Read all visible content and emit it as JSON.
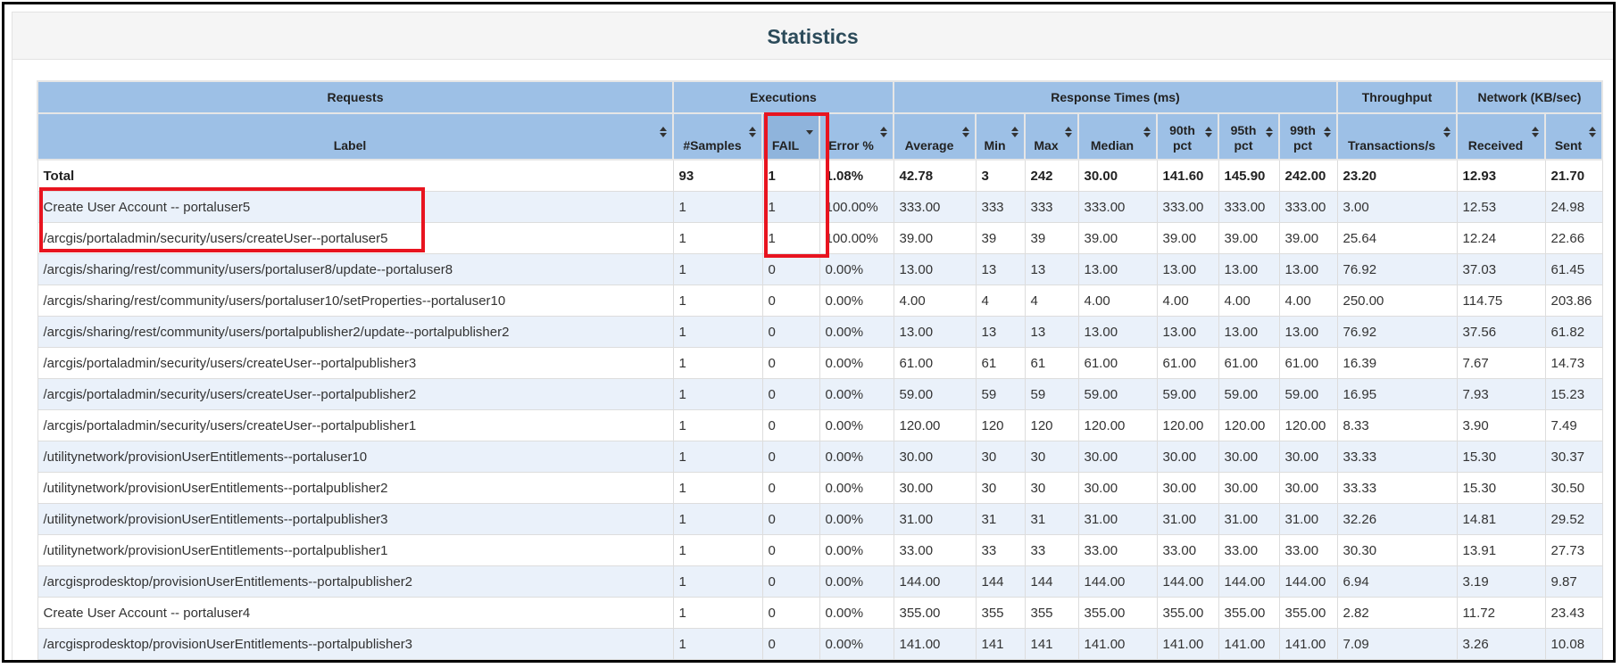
{
  "panel": {
    "title": "Statistics"
  },
  "table": {
    "groups": [
      {
        "label": "Requests",
        "colspan": 1
      },
      {
        "label": "Executions",
        "colspan": 3
      },
      {
        "label": "Response Times (ms)",
        "colspan": 7
      },
      {
        "label": "Throughput",
        "colspan": 1
      },
      {
        "label": "Network (KB/sec)",
        "colspan": 2
      }
    ],
    "columns": [
      {
        "key": "label",
        "line1": "Label",
        "line2": "",
        "sort": "both"
      },
      {
        "key": "samples",
        "line1": "#Samples",
        "line2": "",
        "sort": "both"
      },
      {
        "key": "fail",
        "line1": "FAIL",
        "line2": "",
        "sort": "desc"
      },
      {
        "key": "error_pct",
        "line1": "Error %",
        "line2": "",
        "sort": "both"
      },
      {
        "key": "average",
        "line1": "Average",
        "line2": "",
        "sort": "both"
      },
      {
        "key": "min",
        "line1": "Min",
        "line2": "",
        "sort": "both"
      },
      {
        "key": "max",
        "line1": "Max",
        "line2": "",
        "sort": "both"
      },
      {
        "key": "median",
        "line1": "Median",
        "line2": "",
        "sort": "both"
      },
      {
        "key": "p90",
        "line1": "90th",
        "line2": "pct",
        "sort": "both"
      },
      {
        "key": "p95",
        "line1": "95th",
        "line2": "pct",
        "sort": "both"
      },
      {
        "key": "p99",
        "line1": "99th",
        "line2": "pct",
        "sort": "both"
      },
      {
        "key": "tps",
        "line1": "Transactions/s",
        "line2": "",
        "sort": "both"
      },
      {
        "key": "received",
        "line1": "Received",
        "line2": "",
        "sort": "both"
      },
      {
        "key": "sent",
        "line1": "Sent",
        "line2": "",
        "sort": "both"
      }
    ],
    "total": [
      "Total",
      "93",
      "1",
      "1.08%",
      "42.78",
      "3",
      "242",
      "30.00",
      "141.60",
      "145.90",
      "242.00",
      "23.20",
      "12.93",
      "21.70"
    ],
    "rows": [
      [
        "Create User Account -- portaluser5",
        "1",
        "1",
        "100.00%",
        "333.00",
        "333",
        "333",
        "333.00",
        "333.00",
        "333.00",
        "333.00",
        "3.00",
        "12.53",
        "24.98"
      ],
      [
        "/arcgis/portaladmin/security/users/createUser--portaluser5",
        "1",
        "1",
        "100.00%",
        "39.00",
        "39",
        "39",
        "39.00",
        "39.00",
        "39.00",
        "39.00",
        "25.64",
        "12.24",
        "22.66"
      ],
      [
        "/arcgis/sharing/rest/community/users/portaluser8/update--portaluser8",
        "1",
        "0",
        "0.00%",
        "13.00",
        "13",
        "13",
        "13.00",
        "13.00",
        "13.00",
        "13.00",
        "76.92",
        "37.03",
        "61.45"
      ],
      [
        "/arcgis/sharing/rest/community/users/portaluser10/setProperties--portaluser10",
        "1",
        "0",
        "0.00%",
        "4.00",
        "4",
        "4",
        "4.00",
        "4.00",
        "4.00",
        "4.00",
        "250.00",
        "114.75",
        "203.86"
      ],
      [
        "/arcgis/sharing/rest/community/users/portalpublisher2/update--portalpublisher2",
        "1",
        "0",
        "0.00%",
        "13.00",
        "13",
        "13",
        "13.00",
        "13.00",
        "13.00",
        "13.00",
        "76.92",
        "37.56",
        "61.82"
      ],
      [
        "/arcgis/portaladmin/security/users/createUser--portalpublisher3",
        "1",
        "0",
        "0.00%",
        "61.00",
        "61",
        "61",
        "61.00",
        "61.00",
        "61.00",
        "61.00",
        "16.39",
        "7.67",
        "14.73"
      ],
      [
        "/arcgis/portaladmin/security/users/createUser--portalpublisher2",
        "1",
        "0",
        "0.00%",
        "59.00",
        "59",
        "59",
        "59.00",
        "59.00",
        "59.00",
        "59.00",
        "16.95",
        "7.93",
        "15.23"
      ],
      [
        "/arcgis/portaladmin/security/users/createUser--portalpublisher1",
        "1",
        "0",
        "0.00%",
        "120.00",
        "120",
        "120",
        "120.00",
        "120.00",
        "120.00",
        "120.00",
        "8.33",
        "3.90",
        "7.49"
      ],
      [
        "/utilitynetwork/provisionUserEntitlements--portaluser10",
        "1",
        "0",
        "0.00%",
        "30.00",
        "30",
        "30",
        "30.00",
        "30.00",
        "30.00",
        "30.00",
        "33.33",
        "15.30",
        "30.37"
      ],
      [
        "/utilitynetwork/provisionUserEntitlements--portalpublisher2",
        "1",
        "0",
        "0.00%",
        "30.00",
        "30",
        "30",
        "30.00",
        "30.00",
        "30.00",
        "30.00",
        "33.33",
        "15.30",
        "30.50"
      ],
      [
        "/utilitynetwork/provisionUserEntitlements--portalpublisher3",
        "1",
        "0",
        "0.00%",
        "31.00",
        "31",
        "31",
        "31.00",
        "31.00",
        "31.00",
        "31.00",
        "32.26",
        "14.81",
        "29.52"
      ],
      [
        "/utilitynetwork/provisionUserEntitlements--portalpublisher1",
        "1",
        "0",
        "0.00%",
        "33.00",
        "33",
        "33",
        "33.00",
        "33.00",
        "33.00",
        "33.00",
        "30.30",
        "13.91",
        "27.73"
      ],
      [
        "/arcgisprodesktop/provisionUserEntitlements--portalpublisher2",
        "1",
        "0",
        "0.00%",
        "144.00",
        "144",
        "144",
        "144.00",
        "144.00",
        "144.00",
        "144.00",
        "6.94",
        "3.19",
        "9.87"
      ],
      [
        "Create User Account -- portaluser4",
        "1",
        "0",
        "0.00%",
        "355.00",
        "355",
        "355",
        "355.00",
        "355.00",
        "355.00",
        "355.00",
        "2.82",
        "11.72",
        "23.43"
      ],
      [
        "/arcgisprodesktop/provisionUserEntitlements--portalpublisher3",
        "1",
        "0",
        "0.00%",
        "141.00",
        "141",
        "141",
        "141.00",
        "141.00",
        "141.00",
        "141.00",
        "7.09",
        "3.26",
        "10.08"
      ]
    ]
  },
  "annotations": {
    "color": "#e8141f",
    "boxes": [
      {
        "name": "fail-column-highlight",
        "target": "FAIL column (header through row 2)"
      },
      {
        "name": "failed-requests-highlight",
        "target": "Label cells of rows 1-2"
      }
    ]
  }
}
